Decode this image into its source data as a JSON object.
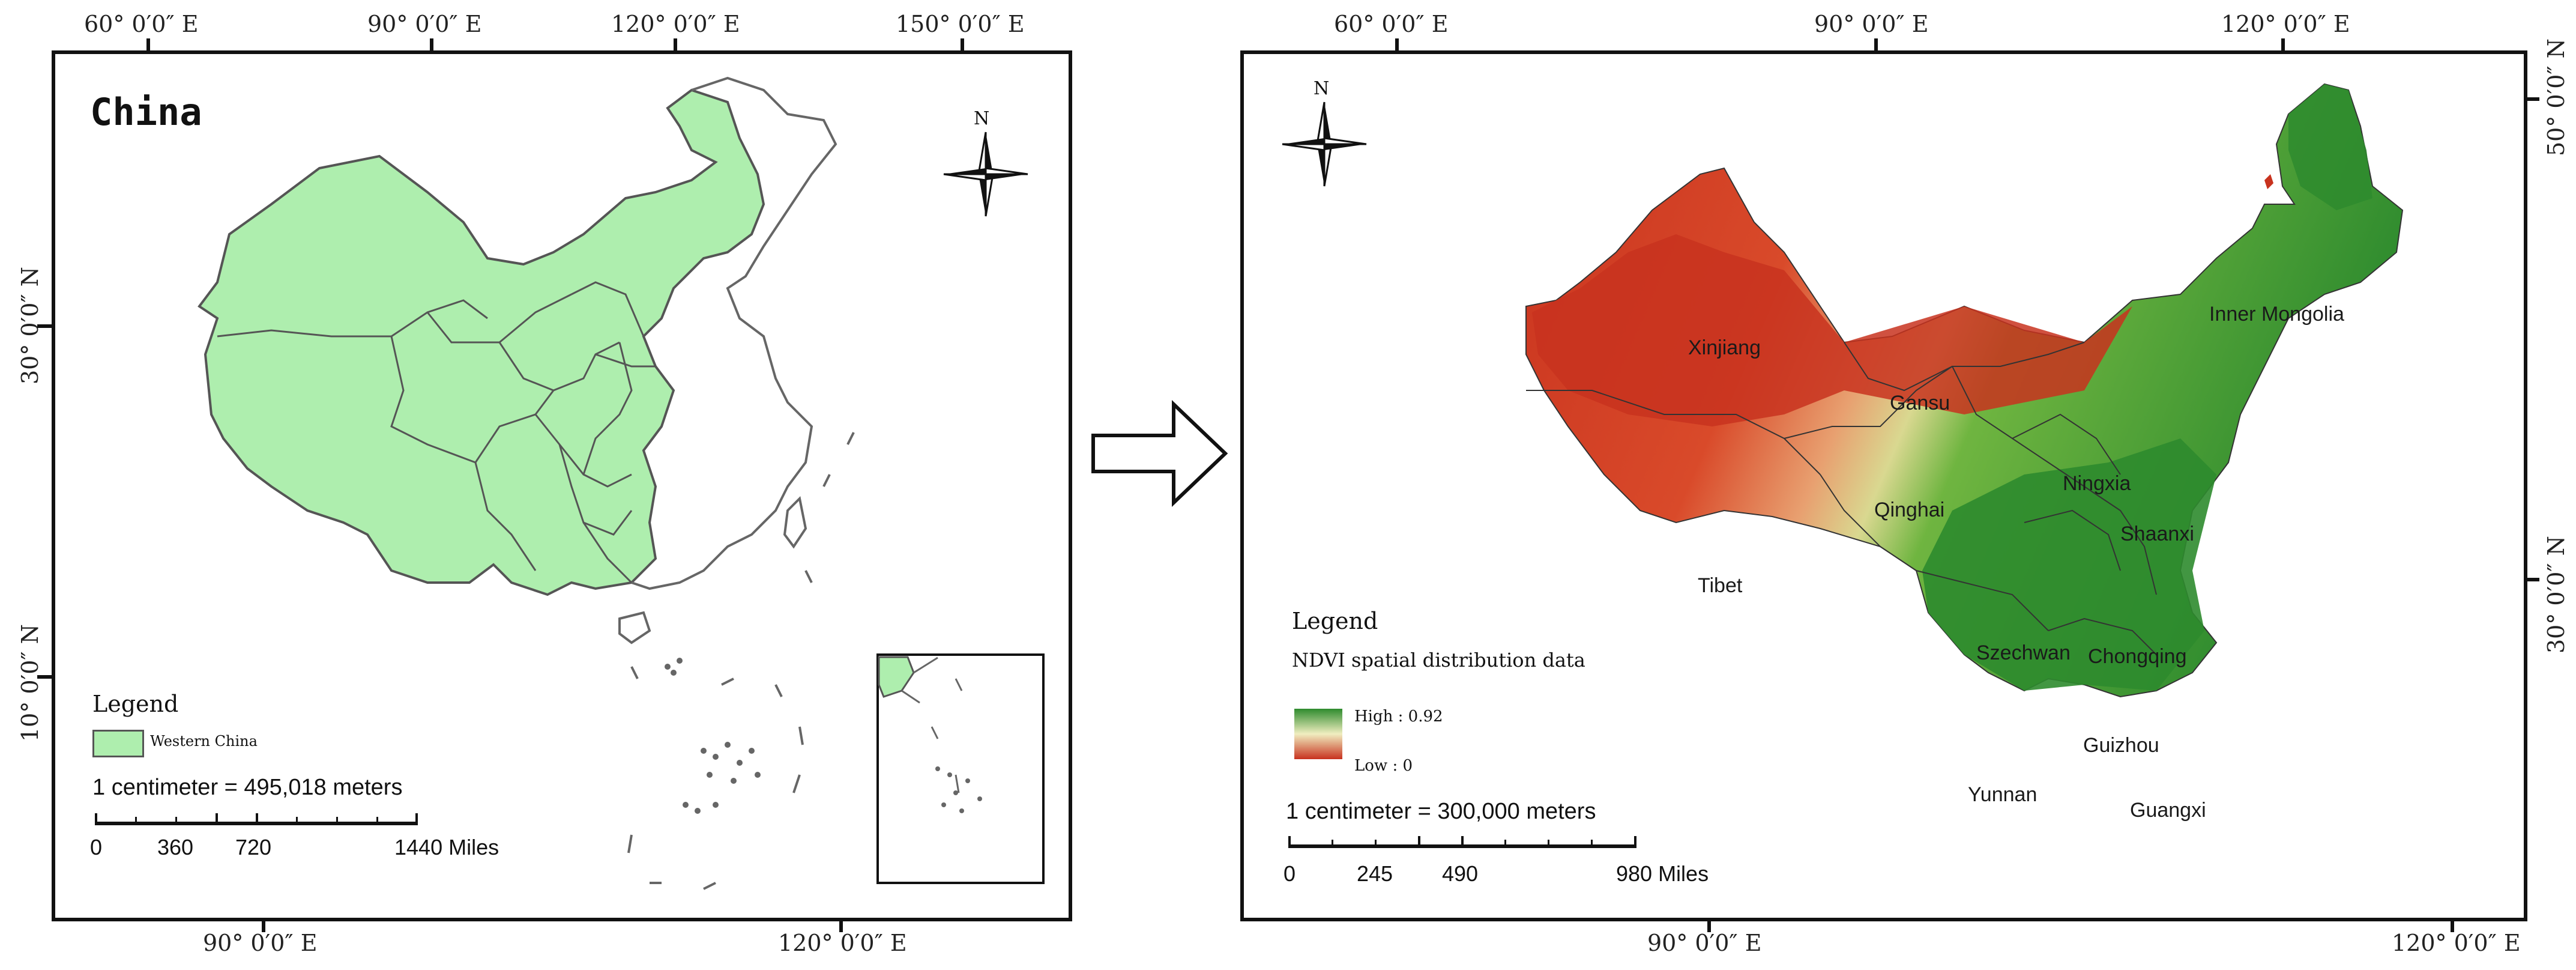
{
  "left_map": {
    "title": "China",
    "top_coords": [
      "60° 0′0″ E",
      "90° 0′0″ E",
      "120° 0′0″ E",
      "150° 0′0″ E"
    ],
    "bottom_coords": [
      "90° 0′0″ E",
      "120° 0′0″ E"
    ],
    "left_coords": [
      "30° 0′0″ N",
      "10° 0′0″ N"
    ],
    "legend": {
      "title": "Legend",
      "item_label": "Western China",
      "item_color": "#aeeeae"
    },
    "scale": {
      "text": "1 centimeter = 495,018 meters",
      "labels": [
        "0",
        "360",
        "720",
        "1440 Miles"
      ]
    },
    "north_label": "N"
  },
  "arrow": {
    "icon": "right-arrow-icon"
  },
  "right_map": {
    "top_coords": [
      "60° 0′0″ E",
      "90° 0′0″ E",
      "120° 0′0″ E"
    ],
    "bottom_coords": [
      "90° 0′0″ E",
      "120° 0′0″ E"
    ],
    "right_coords": [
      "50° 0′0″ N",
      "30° 0′0″ N"
    ],
    "north_label": "N",
    "legend": {
      "title": "Legend",
      "subtitle": "NDVI spatial distribution data",
      "high_label": "High : 0.92",
      "low_label": "Low : 0",
      "high_color": "#2e8b2e",
      "low_color": "#c8321e"
    },
    "scale": {
      "text": "1 centimeter = 300,000 meters",
      "labels": [
        "0",
        "245",
        "490",
        "980 Miles"
      ]
    },
    "provinces": [
      "Xinjiang",
      "Gansu",
      "Inner Mongolia",
      "Ningxia",
      "Qinghai",
      "Shaanxi",
      "Tibet",
      "Szechwan",
      "Chongqing",
      "Guizhou",
      "Yunnan",
      "Guangxi"
    ]
  }
}
